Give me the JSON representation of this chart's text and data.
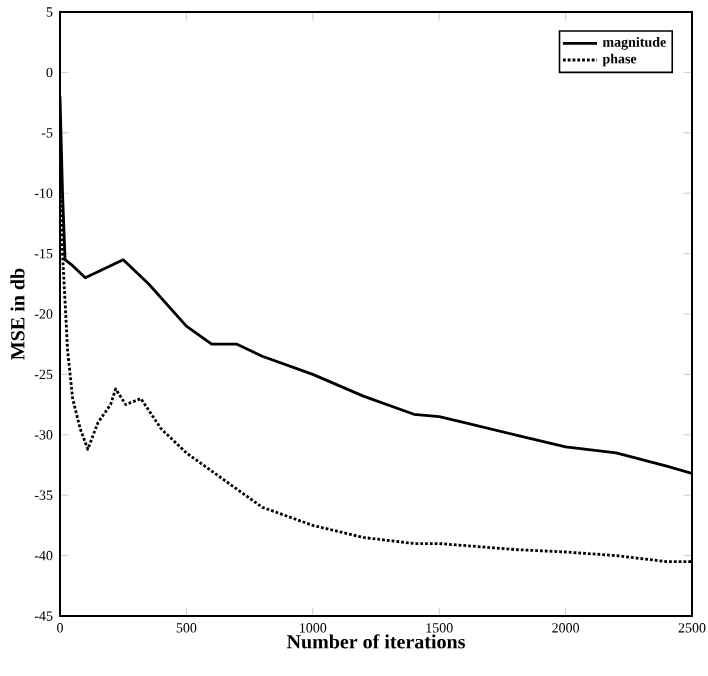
{
  "chart_data": {
    "type": "line",
    "xlabel": "Number of iterations",
    "ylabel": "MSE in db",
    "xlim": [
      0,
      2500
    ],
    "ylim": [
      -45,
      5
    ],
    "xticks": [
      0,
      500,
      1000,
      1500,
      2000,
      2500
    ],
    "yticks": [
      -45,
      -40,
      -35,
      -30,
      -25,
      -20,
      -15,
      -10,
      -5,
      0,
      5
    ],
    "legend": "top right",
    "grid": false,
    "series": [
      {
        "name": "magnitude",
        "color": "#000000",
        "line_style": "solid",
        "x": [
          0,
          10,
          20,
          50,
          100,
          150,
          250,
          350,
          500,
          600,
          700,
          800,
          1000,
          1200,
          1400,
          1500,
          1600,
          1800,
          2000,
          2200,
          2400,
          2500
        ],
        "values": [
          -2,
          -10,
          -15.5,
          -16,
          -17,
          -16.5,
          -15.5,
          -17.5,
          -21,
          -22.5,
          -22.5,
          -23.5,
          -25,
          -26.8,
          -28.3,
          -28.5,
          -29,
          -30,
          -31,
          -31.5,
          -32.6,
          -33.2
        ]
      },
      {
        "name": "phase",
        "color": "#000000",
        "line_style": "dotted",
        "x": [
          0,
          10,
          30,
          50,
          80,
          110,
          150,
          200,
          220,
          260,
          320,
          400,
          500,
          600,
          700,
          800,
          1000,
          1200,
          1400,
          1500,
          1800,
          2000,
          2200,
          2400,
          2500
        ],
        "values": [
          -5,
          -15,
          -23,
          -27,
          -29.5,
          -31.2,
          -29,
          -27.5,
          -26.2,
          -27.5,
          -27,
          -29.5,
          -31.5,
          -33,
          -34.5,
          -36,
          -37.5,
          -38.5,
          -39,
          -39,
          -39.5,
          -39.7,
          -40,
          -40.5,
          -40.5
        ]
      }
    ]
  }
}
